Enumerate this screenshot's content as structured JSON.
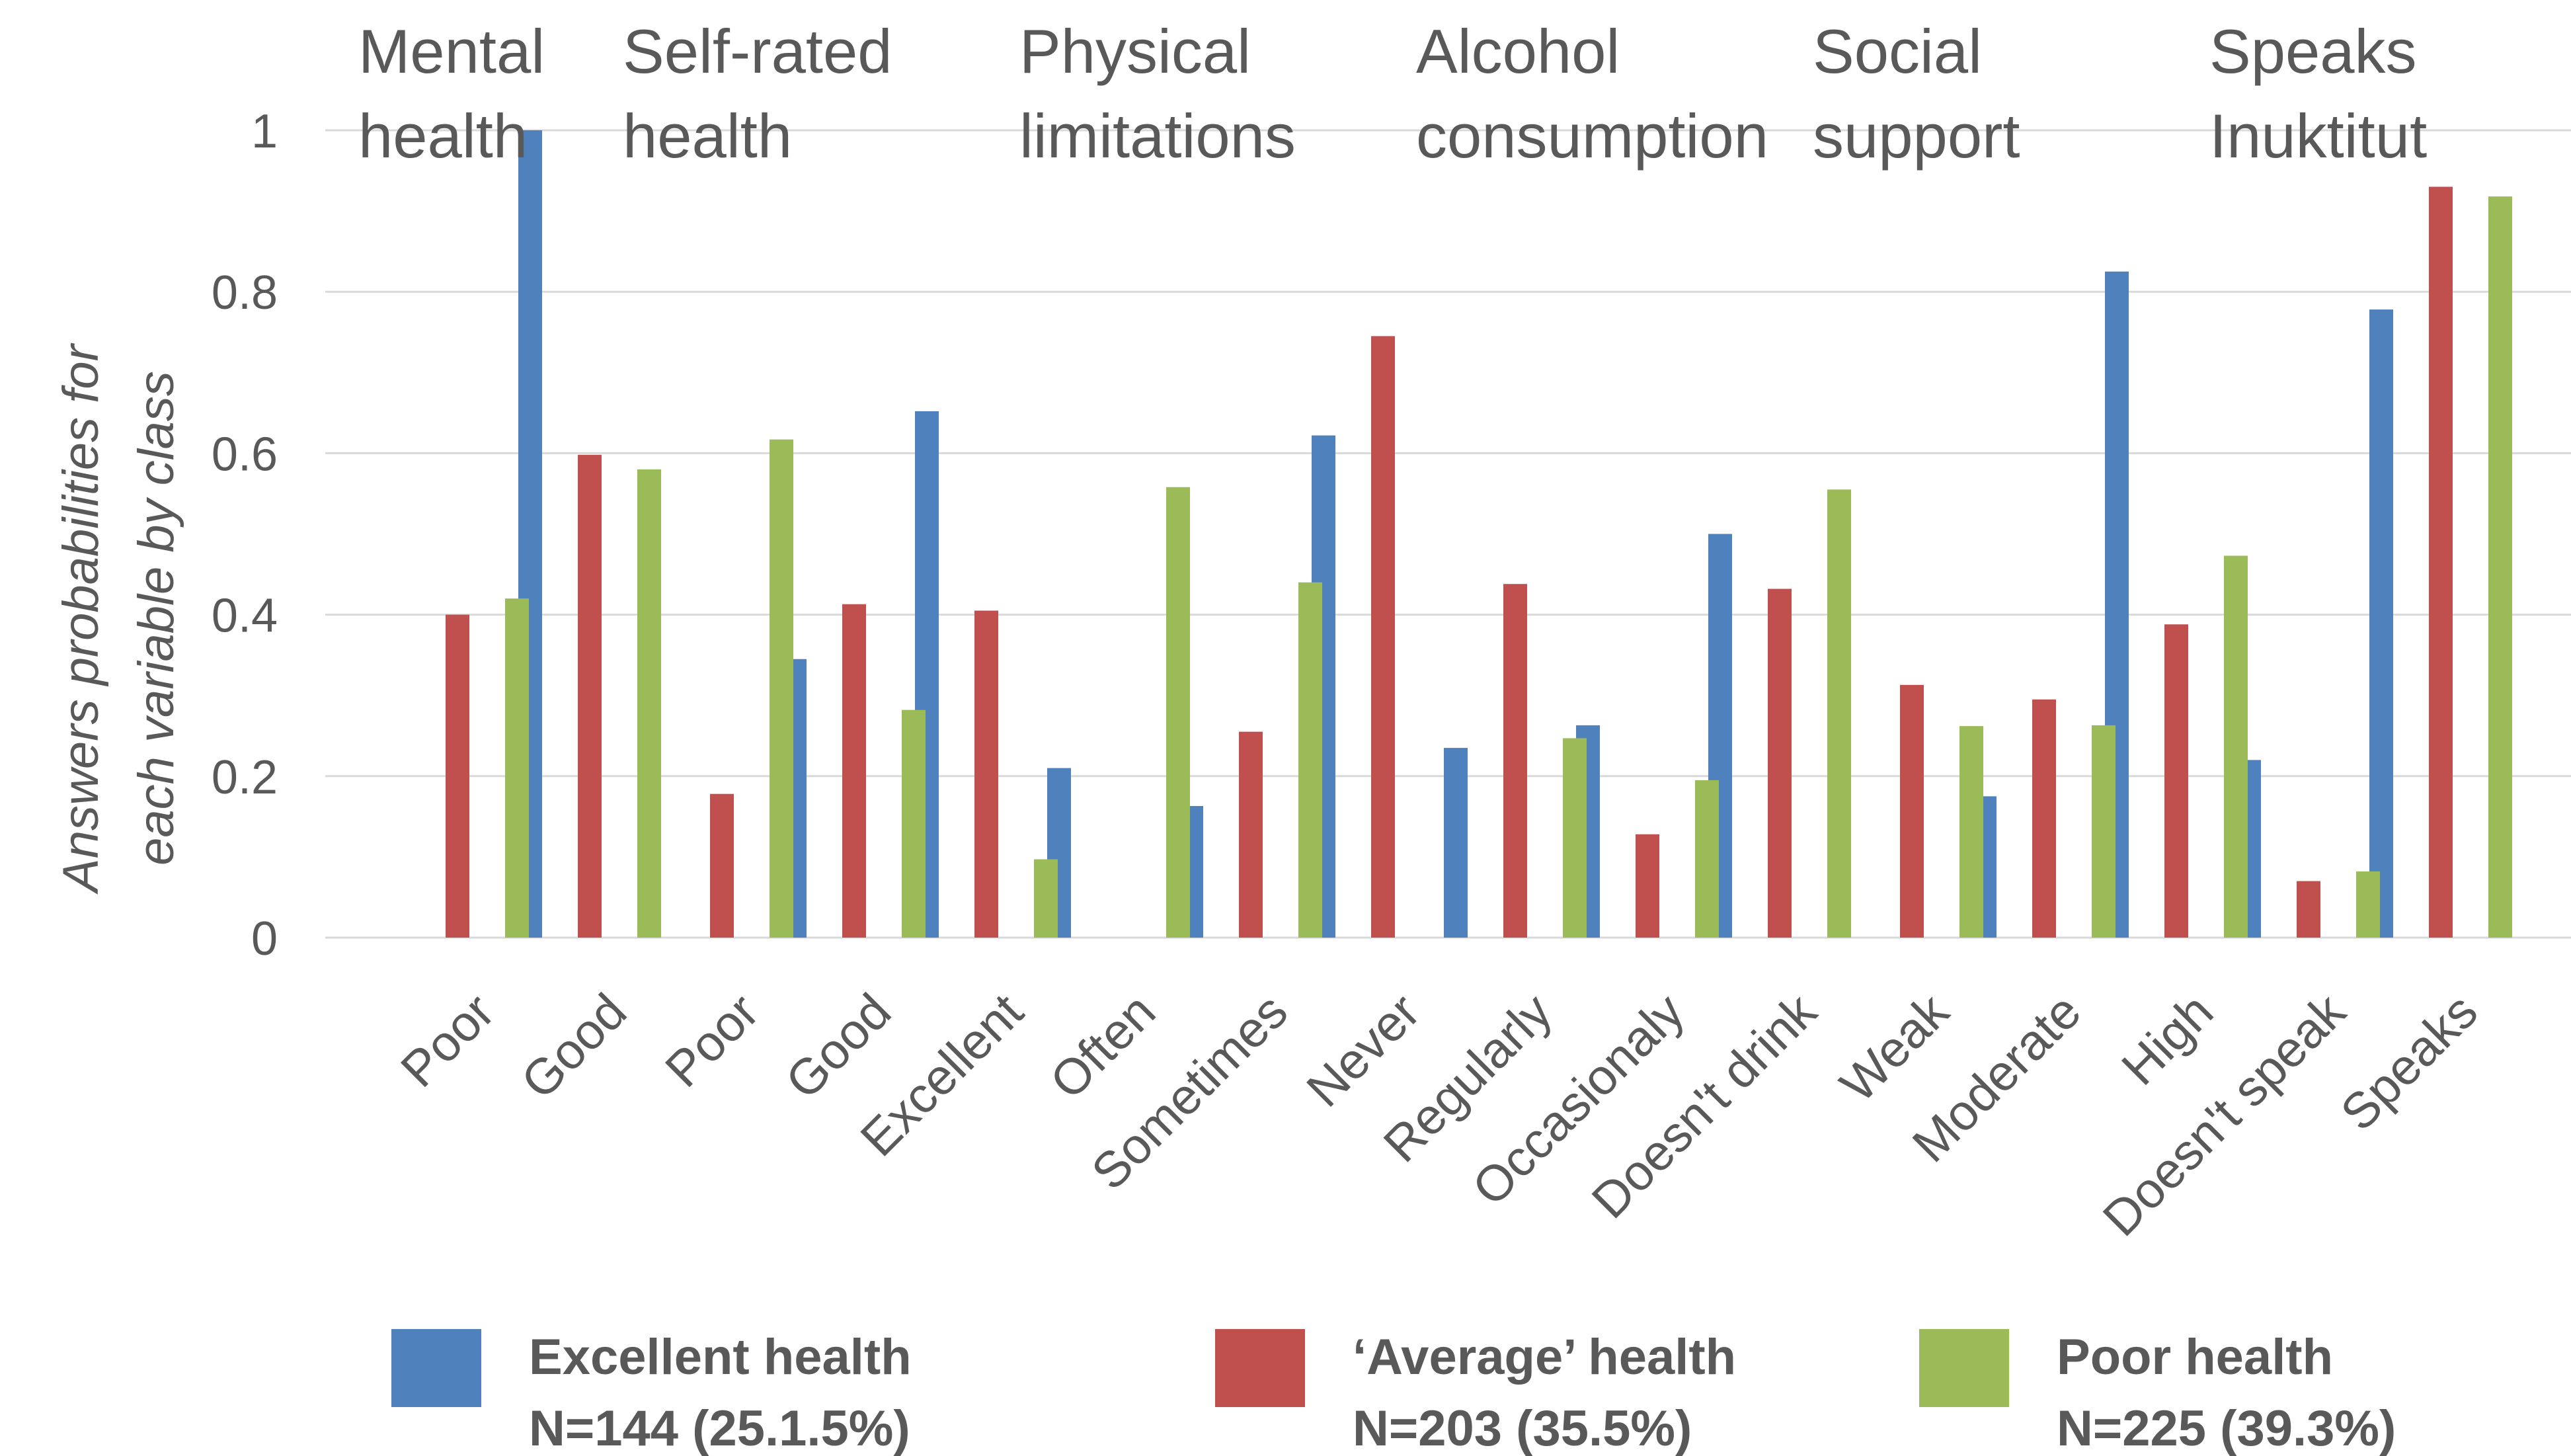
{
  "chart_data": {
    "type": "bar",
    "title": "",
    "xlabel": "",
    "ylabel": "Answers probabilities for each variable by class",
    "ylabel_lines": [
      "Answers probabilities for",
      "each variable by class"
    ],
    "ylim": [
      0,
      1
    ],
    "yticks": [
      "0",
      "0.2",
      "0.4",
      "0.6",
      "0.8",
      "1"
    ],
    "grid": true,
    "legend_position": "bottom",
    "categories": [
      "Poor",
      "Good",
      "Poor",
      "Good",
      "Excellent",
      "Often",
      "Sometimes",
      "Never",
      "Regularly",
      "Occasionaly",
      "Doesn't drink",
      "Weak",
      "Moderate",
      "High",
      "Doesn't speak",
      "Speaks"
    ],
    "groups": [
      {
        "label_lines": [
          "Mental",
          "health"
        ],
        "start": 0,
        "count": 2
      },
      {
        "label_lines": [
          "Self-rated",
          "health"
        ],
        "start": 2,
        "count": 3
      },
      {
        "label_lines": [
          "Physical",
          "limitations"
        ],
        "start": 5,
        "count": 3
      },
      {
        "label_lines": [
          "Alcohol",
          "consumption"
        ],
        "start": 8,
        "count": 3
      },
      {
        "label_lines": [
          "Social",
          "support"
        ],
        "start": 11,
        "count": 3
      },
      {
        "label_lines": [
          "Speaks",
          "Inuktitut"
        ],
        "start": 14,
        "count": 2
      }
    ],
    "series": [
      {
        "name": "Excellent health",
        "subtitle": "N=144 (25.1.5%)",
        "color": "#4F81BD",
        "values": [
          0,
          1.0,
          0,
          0.345,
          0.652,
          0.21,
          0.163,
          0.622,
          0.235,
          0.263,
          0.5,
          0,
          0.175,
          0.825,
          0.22,
          0.778
        ]
      },
      {
        "name": "‘Average’ health",
        "subtitle": "N=203 (35.5%)",
        "color": "#C0504D",
        "values": [
          0.4,
          0.598,
          0.178,
          0.413,
          0.405,
          0,
          0.255,
          0.745,
          0.438,
          0.128,
          0.432,
          0.313,
          0.295,
          0.388,
          0.07,
          0.93
        ]
      },
      {
        "name": "Poor health",
        "subtitle": "N=225 (39.3%)",
        "color": "#9BBB59",
        "values": [
          0.42,
          0.58,
          0.617,
          0.282,
          0.097,
          0.558,
          0.44,
          0,
          0.247,
          0.195,
          0.555,
          0.262,
          0.263,
          0.473,
          0.082,
          0.918
        ]
      }
    ]
  }
}
